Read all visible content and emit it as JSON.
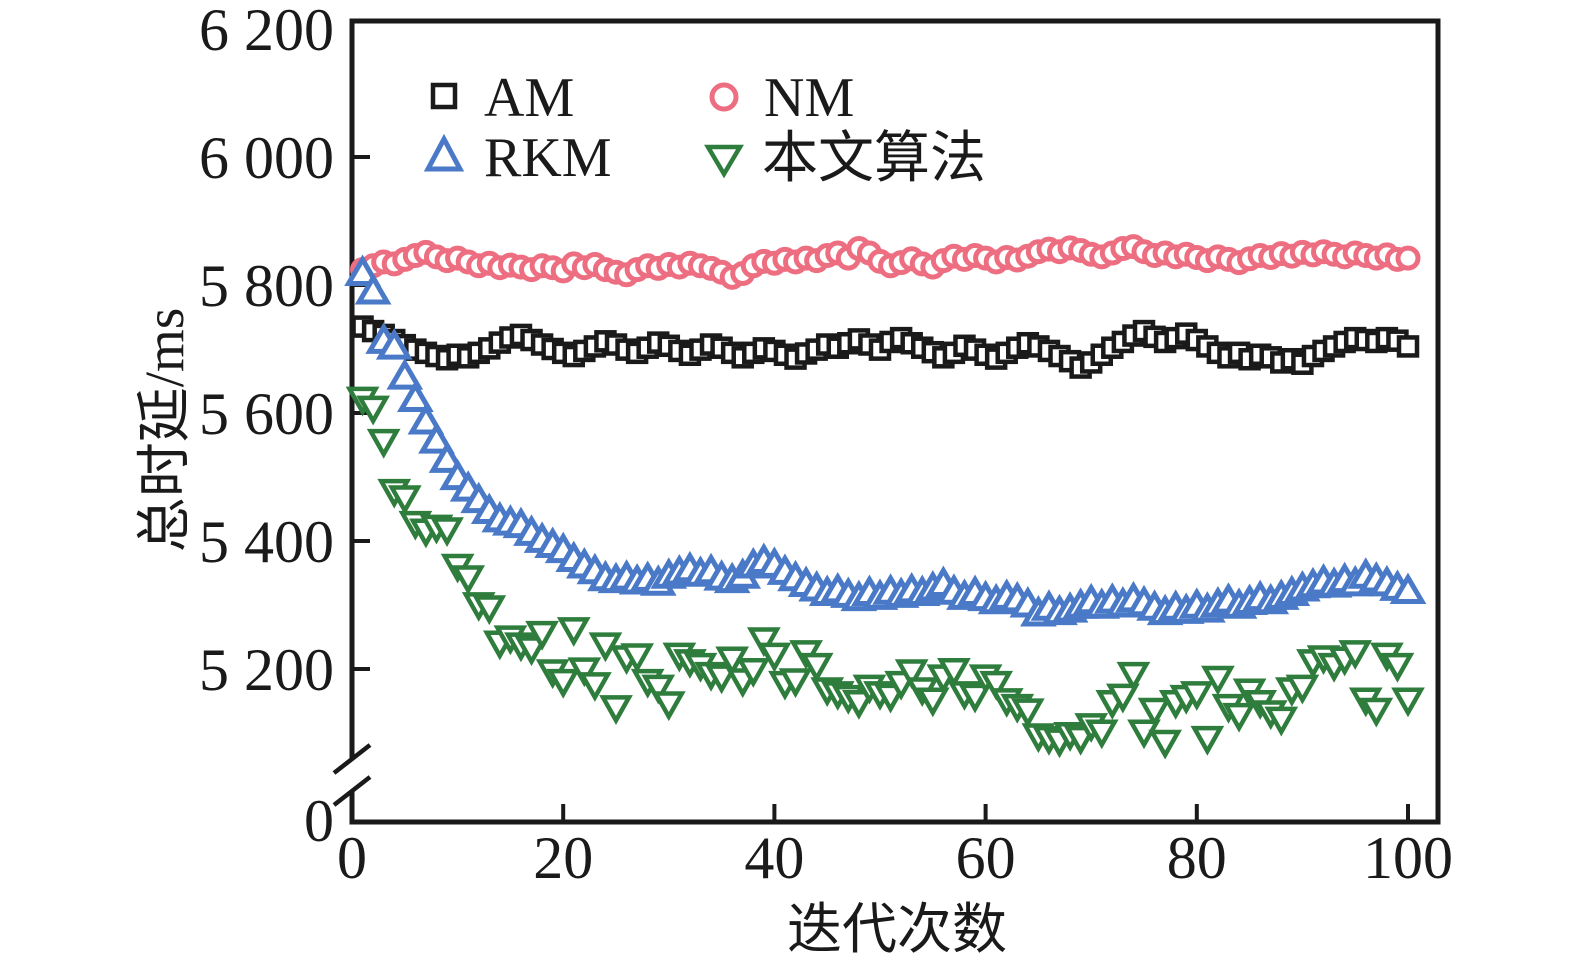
{
  "figure": {
    "background": "#ffffff",
    "axis_color": "#1a1a1a"
  },
  "chart_data": {
    "type": "scatter",
    "title": "",
    "xlabel": "迭代次数",
    "ylabel": "总时延/ms",
    "legend_position": "top-left, two columns, no frame",
    "grid": false,
    "x_axis": {
      "ticks": [
        0,
        20,
        40,
        60,
        80,
        100
      ],
      "range": [
        0,
        103
      ]
    },
    "y_axis": {
      "tick_values": [
        6200,
        6000,
        5800,
        5600,
        5400,
        5200
      ],
      "tick_labels": [
        "6 200",
        "6 000",
        "5 800",
        "5 600",
        "5 400",
        "5 200"
      ],
      "zero_label": "0",
      "broken_axis": true,
      "upper_segment_range": [
        5050,
        6200
      ]
    },
    "x_range": {
      "start": 1,
      "end": 100,
      "step": 1
    },
    "series": [
      {
        "name": "AM",
        "marker": "square",
        "color": "#1a1a1a",
        "values": [
          5735,
          5728,
          5722,
          5714,
          5706,
          5699,
          5694,
          5689,
          5684,
          5691,
          5687,
          5694,
          5701,
          5710,
          5718,
          5722,
          5714,
          5707,
          5700,
          5694,
          5689,
          5697,
          5704,
          5712,
          5707,
          5699,
          5694,
          5702,
          5710,
          5705,
          5697,
          5691,
          5699,
          5707,
          5702,
          5694,
          5687,
          5694,
          5701,
          5697,
          5691,
          5685,
          5693,
          5699,
          5707,
          5702,
          5709,
          5715,
          5707,
          5699,
          5711,
          5717,
          5709,
          5702,
          5695,
          5687,
          5694,
          5705,
          5699,
          5691,
          5685,
          5694,
          5702,
          5709,
          5704,
          5697,
          5689,
          5681,
          5671,
          5679,
          5691,
          5702,
          5711,
          5721,
          5728,
          5719,
          5711,
          5717,
          5724,
          5714,
          5704,
          5694,
          5687,
          5694,
          5684,
          5691,
          5687,
          5679,
          5684,
          5677,
          5689,
          5697,
          5704,
          5711,
          5717,
          5714,
          5711,
          5717,
          5713,
          5704
        ]
      },
      {
        "name": "NM",
        "marker": "circle",
        "color": "#ec6e80",
        "values": [
          5824,
          5830,
          5836,
          5833,
          5840,
          5846,
          5851,
          5844,
          5838,
          5842,
          5836,
          5830,
          5834,
          5827,
          5831,
          5828,
          5824,
          5830,
          5827,
          5822,
          5833,
          5827,
          5832,
          5824,
          5820,
          5816,
          5824,
          5830,
          5826,
          5832,
          5828,
          5834,
          5830,
          5826,
          5820,
          5812,
          5818,
          5830,
          5837,
          5834,
          5840,
          5836,
          5842,
          5838,
          5846,
          5850,
          5842,
          5857,
          5850,
          5837,
          5830,
          5835,
          5841,
          5833,
          5828,
          5838,
          5845,
          5840,
          5846,
          5842,
          5836,
          5843,
          5839,
          5845,
          5852,
          5856,
          5852,
          5858,
          5854,
          5848,
          5844,
          5850,
          5857,
          5860,
          5852,
          5846,
          5850,
          5844,
          5848,
          5843,
          5838,
          5844,
          5840,
          5835,
          5841,
          5846,
          5843,
          5849,
          5845,
          5851,
          5847,
          5852,
          5848,
          5844,
          5850,
          5846,
          5842,
          5847,
          5840,
          5842
        ]
      },
      {
        "name": "RKM",
        "marker": "triangle-up",
        "color": "#4a7ac7",
        "values": [
          5818,
          5789,
          5712,
          5703,
          5656,
          5621,
          5586,
          5556,
          5526,
          5499,
          5481,
          5463,
          5446,
          5433,
          5428,
          5424,
          5412,
          5401,
          5393,
          5385,
          5371,
          5361,
          5352,
          5341,
          5338,
          5342,
          5336,
          5340,
          5334,
          5345,
          5350,
          5355,
          5348,
          5352,
          5342,
          5338,
          5345,
          5361,
          5368,
          5362,
          5351,
          5341,
          5332,
          5325,
          5318,
          5322,
          5315,
          5310,
          5318,
          5312,
          5320,
          5315,
          5322,
          5318,
          5325,
          5332,
          5320,
          5312,
          5318,
          5310,
          5305,
          5312,
          5308,
          5300,
          5286,
          5295,
          5288,
          5292,
          5298,
          5305,
          5298,
          5306,
          5300,
          5308,
          5302,
          5295,
          5288,
          5295,
          5290,
          5298,
          5292,
          5300,
          5306,
          5298,
          5304,
          5310,
          5305,
          5312,
          5318,
          5325,
          5330,
          5336,
          5331,
          5338,
          5333,
          5345,
          5339,
          5333,
          5326,
          5321
        ]
      },
      {
        "name": "本文算法",
        "marker": "triangle-down",
        "color": "#2e7d3c",
        "values": [
          5622,
          5608,
          5556,
          5478,
          5468,
          5428,
          5416,
          5422,
          5418,
          5361,
          5343,
          5301,
          5296,
          5241,
          5249,
          5238,
          5232,
          5256,
          5196,
          5181,
          5262,
          5199,
          5176,
          5238,
          5140,
          5218,
          5221,
          5181,
          5172,
          5146,
          5222,
          5212,
          5206,
          5192,
          5188,
          5216,
          5182,
          5198,
          5246,
          5222,
          5178,
          5182,
          5226,
          5206,
          5168,
          5162,
          5156,
          5148,
          5172,
          5162,
          5158,
          5178,
          5196,
          5168,
          5152,
          5188,
          5198,
          5162,
          5158,
          5188,
          5178,
          5151,
          5142,
          5135,
          5096,
          5092,
          5088,
          5098,
          5092,
          5112,
          5102,
          5148,
          5158,
          5192,
          5102,
          5136,
          5086,
          5148,
          5156,
          5162,
          5092,
          5186,
          5142,
          5128,
          5166,
          5148,
          5132,
          5122,
          5168,
          5172,
          5212,
          5218,
          5206,
          5216,
          5226,
          5152,
          5136,
          5222,
          5206,
          5152
        ]
      }
    ]
  }
}
